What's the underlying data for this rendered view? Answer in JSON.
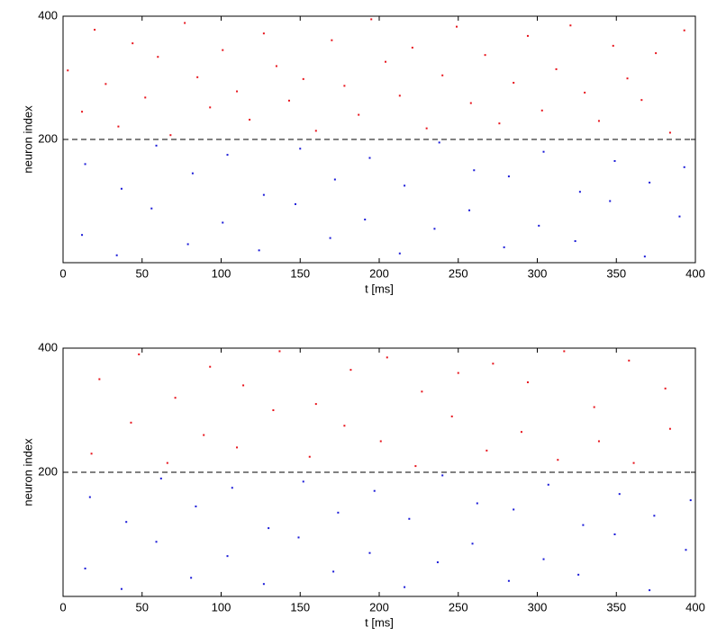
{
  "chart_data": [
    {
      "type": "scatter",
      "xlabel": "t [ms]",
      "ylabel": "neuron index",
      "xlim": [
        0,
        400
      ],
      "ylim": [
        0,
        400
      ],
      "xticks": [
        0,
        50,
        100,
        150,
        200,
        250,
        300,
        350,
        400
      ],
      "yticks": [
        200,
        400
      ],
      "hline": 200,
      "series": [
        {
          "color": "#e8141c",
          "x": [
            3,
            12,
            20,
            27,
            35,
            44,
            52,
            60,
            68,
            77,
            85,
            93,
            101,
            110,
            118,
            127,
            135,
            143,
            152,
            160,
            170,
            178,
            187,
            195,
            204,
            213,
            221,
            230,
            240,
            249,
            258,
            267,
            276,
            285,
            294,
            303,
            312,
            321,
            330,
            339,
            348,
            357,
            366,
            375,
            384,
            393
          ],
          "values": [
            312,
            245,
            378,
            290,
            221,
            356,
            268,
            334,
            207,
            389,
            301,
            252,
            345,
            278,
            232,
            372,
            319,
            263,
            298,
            214,
            361,
            287,
            240,
            395,
            326,
            271,
            349,
            218,
            304,
            383,
            259,
            337,
            226,
            292,
            368,
            247,
            314,
            385,
            276,
            230,
            352,
            299,
            264,
            340,
            211,
            377
          ]
        },
        {
          "color": "#1a1ad8",
          "x": [
            12,
            14,
            34,
            37,
            56,
            59,
            79,
            82,
            101,
            104,
            124,
            127,
            147,
            150,
            169,
            172,
            191,
            194,
            213,
            216,
            235,
            238,
            257,
            260,
            279,
            282,
            301,
            304,
            324,
            327,
            346,
            349,
            368,
            371,
            390,
            393
          ],
          "values": [
            45,
            160,
            12,
            120,
            88,
            190,
            30,
            145,
            65,
            175,
            20,
            110,
            95,
            185,
            40,
            135,
            70,
            170,
            15,
            125,
            55,
            195,
            85,
            150,
            25,
            140,
            60,
            180,
            35,
            115,
            100,
            165,
            10,
            130,
            75,
            155
          ]
        }
      ]
    },
    {
      "type": "scatter",
      "xlabel": "t [ms]",
      "ylabel": "neuron index",
      "xlim": [
        0,
        400
      ],
      "ylim": [
        0,
        400
      ],
      "xticks": [
        0,
        50,
        100,
        150,
        200,
        250,
        300,
        350,
        400
      ],
      "yticks": [
        200,
        400
      ],
      "hline": 200,
      "series": [
        {
          "color": "#e8141c",
          "x": [
            18,
            23,
            43,
            48,
            66,
            71,
            89,
            93,
            110,
            114,
            133,
            137,
            156,
            160,
            178,
            182,
            201,
            205,
            223,
            227,
            246,
            250,
            268,
            272,
            290,
            294,
            313,
            317,
            336,
            339,
            358,
            361,
            381,
            384
          ],
          "values": [
            230,
            350,
            280,
            390,
            215,
            320,
            260,
            370,
            240,
            340,
            300,
            395,
            225,
            310,
            275,
            365,
            250,
            385,
            210,
            330,
            290,
            360,
            235,
            375,
            265,
            345,
            220,
            395,
            305,
            250,
            380,
            215,
            335,
            270
          ]
        },
        {
          "color": "#1a1ad8",
          "x": [
            14,
            17,
            37,
            40,
            59,
            62,
            81,
            84,
            104,
            107,
            127,
            130,
            149,
            152,
            171,
            174,
            194,
            197,
            216,
            219,
            237,
            240,
            259,
            262,
            282,
            285,
            304,
            307,
            326,
            329,
            349,
            352,
            371,
            374,
            394,
            397
          ],
          "values": [
            45,
            160,
            12,
            120,
            88,
            190,
            30,
            145,
            65,
            175,
            20,
            110,
            95,
            185,
            40,
            135,
            70,
            170,
            15,
            125,
            55,
            195,
            85,
            150,
            25,
            140,
            60,
            180,
            35,
            115,
            100,
            165,
            10,
            130,
            75,
            155
          ]
        }
      ]
    }
  ]
}
